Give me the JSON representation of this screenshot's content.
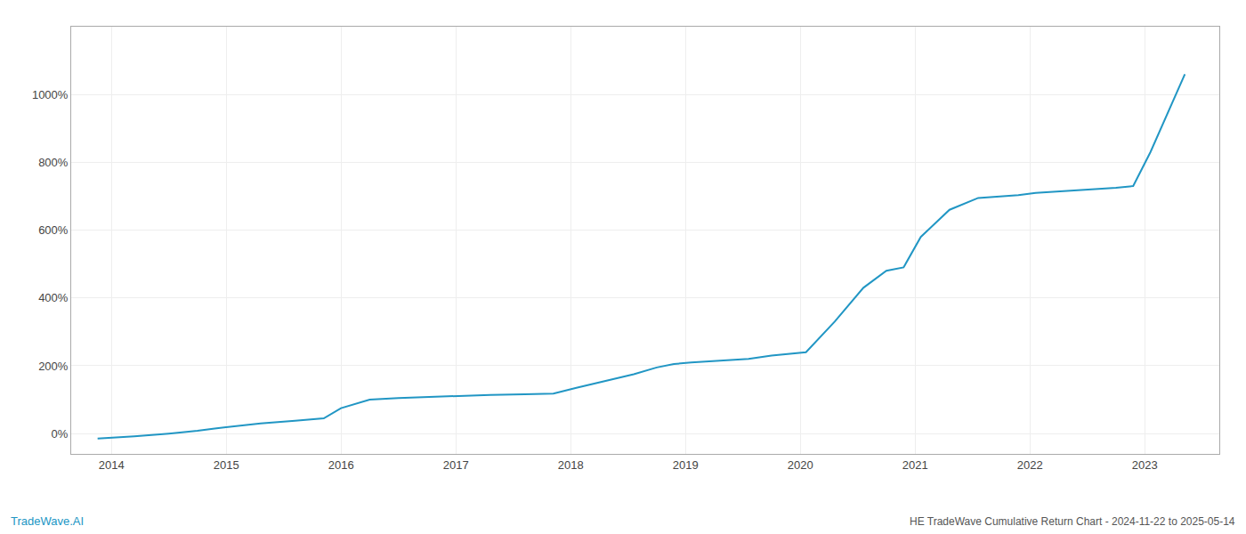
{
  "chart_data": {
    "type": "line",
    "title": "HE TradeWave Cumulative Return Chart - 2024-11-22 to 2025-05-14",
    "annotations": [
      "TradeWave.AI"
    ],
    "x": [
      2013.88,
      2014.05,
      2014.2,
      2014.5,
      2014.75,
      2014.9,
      2015.05,
      2015.3,
      2015.6,
      2015.85,
      2016.0,
      2016.25,
      2016.5,
      2016.75,
      2016.9,
      2017.05,
      2017.3,
      2017.6,
      2017.85,
      2018.05,
      2018.3,
      2018.55,
      2018.75,
      2018.9,
      2019.05,
      2019.3,
      2019.55,
      2019.75,
      2019.88,
      2020.05,
      2020.3,
      2020.55,
      2020.75,
      2020.9,
      2021.05,
      2021.3,
      2021.55,
      2021.75,
      2021.9,
      2022.05,
      2022.3,
      2022.55,
      2022.75,
      2022.9,
      2023.05,
      2023.35
    ],
    "values": [
      -15,
      -12,
      -8,
      0,
      8,
      15,
      20,
      30,
      38,
      45,
      75,
      100,
      105,
      108,
      110,
      112,
      114,
      116,
      118,
      135,
      155,
      175,
      195,
      205,
      210,
      215,
      220,
      230,
      235,
      240,
      330,
      430,
      480,
      490,
      580,
      660,
      695,
      700,
      703,
      710,
      715,
      720,
      725,
      730,
      830,
      1060
    ],
    "color": "#2196c4",
    "xlim": [
      2013.65,
      2023.65
    ],
    "ylim": [
      -60,
      1200
    ],
    "xticks": [
      2014,
      2015,
      2016,
      2017,
      2018,
      2019,
      2020,
      2021,
      2022,
      2023
    ],
    "yticks": [
      {
        "value": 0,
        "label": "0%"
      },
      {
        "value": 200,
        "label": "200%"
      },
      {
        "value": 400,
        "label": "400%"
      },
      {
        "value": 600,
        "label": "600%"
      },
      {
        "value": 800,
        "label": "800%"
      },
      {
        "value": 1000,
        "label": "1000%"
      }
    ],
    "grid": true
  }
}
